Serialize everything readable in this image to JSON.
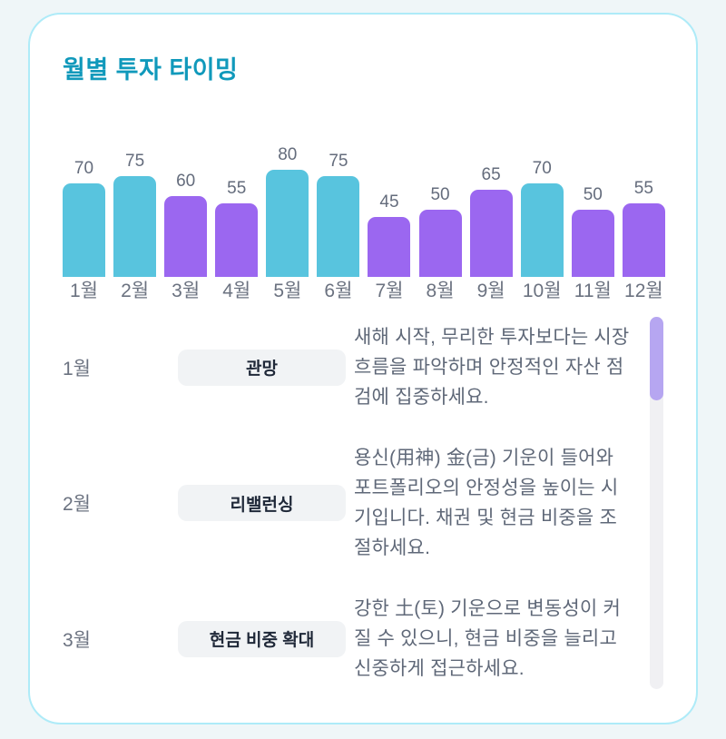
{
  "page": {
    "background": "#eff6f8"
  },
  "card": {
    "title": "월별 투자 타이밍",
    "title_color": "#1099bb",
    "background": "#ffffff",
    "border_color": "#aeebf8"
  },
  "chart_data": {
    "type": "bar",
    "title": "월별 투자 타이밍",
    "categories": [
      "1월",
      "2월",
      "3월",
      "4월",
      "5월",
      "6월",
      "7월",
      "8월",
      "9월",
      "10월",
      "11월",
      "12월"
    ],
    "values": [
      70,
      75,
      60,
      55,
      80,
      75,
      45,
      50,
      65,
      70,
      50,
      55
    ],
    "bar_colors": [
      "cyan",
      "cyan",
      "purple",
      "purple",
      "cyan",
      "cyan",
      "purple",
      "purple",
      "purple",
      "cyan",
      "purple",
      "purple"
    ],
    "colors": {
      "cyan": "#58c4de",
      "purple": "#9b67f0"
    },
    "value_label_color": "#646c7c",
    "category_label_color": "#6b7280",
    "xlabel": "",
    "ylabel": "",
    "ylim": [
      0,
      80
    ],
    "grid": false,
    "legend": false,
    "value_labels_shown": true
  },
  "timeline": {
    "rows": [
      {
        "month": "1월",
        "badge": "관망",
        "description": "새해 시작, 무리한 투자보다는 시장 흐름을 파악하며 안정적인 자산 점검에 집중하세요."
      },
      {
        "month": "2월",
        "badge": "리밸런싱",
        "description": "용신(用神) 金(금) 기운이 들어와 포트폴리오의 안정성을 높이는 시기입니다. 채권 및 현금 비중을 조절하세요."
      },
      {
        "month": "3월",
        "badge": "현금 비중 확대",
        "description": "강한 土(토) 기운으로 변동성이 커질 수 있으니, 현금 비중을 늘리고 신중하게 접근하세요."
      }
    ],
    "scrollbar": {
      "track_color": "#f0f0f3",
      "thumb_color": "#b6a6f1"
    }
  }
}
